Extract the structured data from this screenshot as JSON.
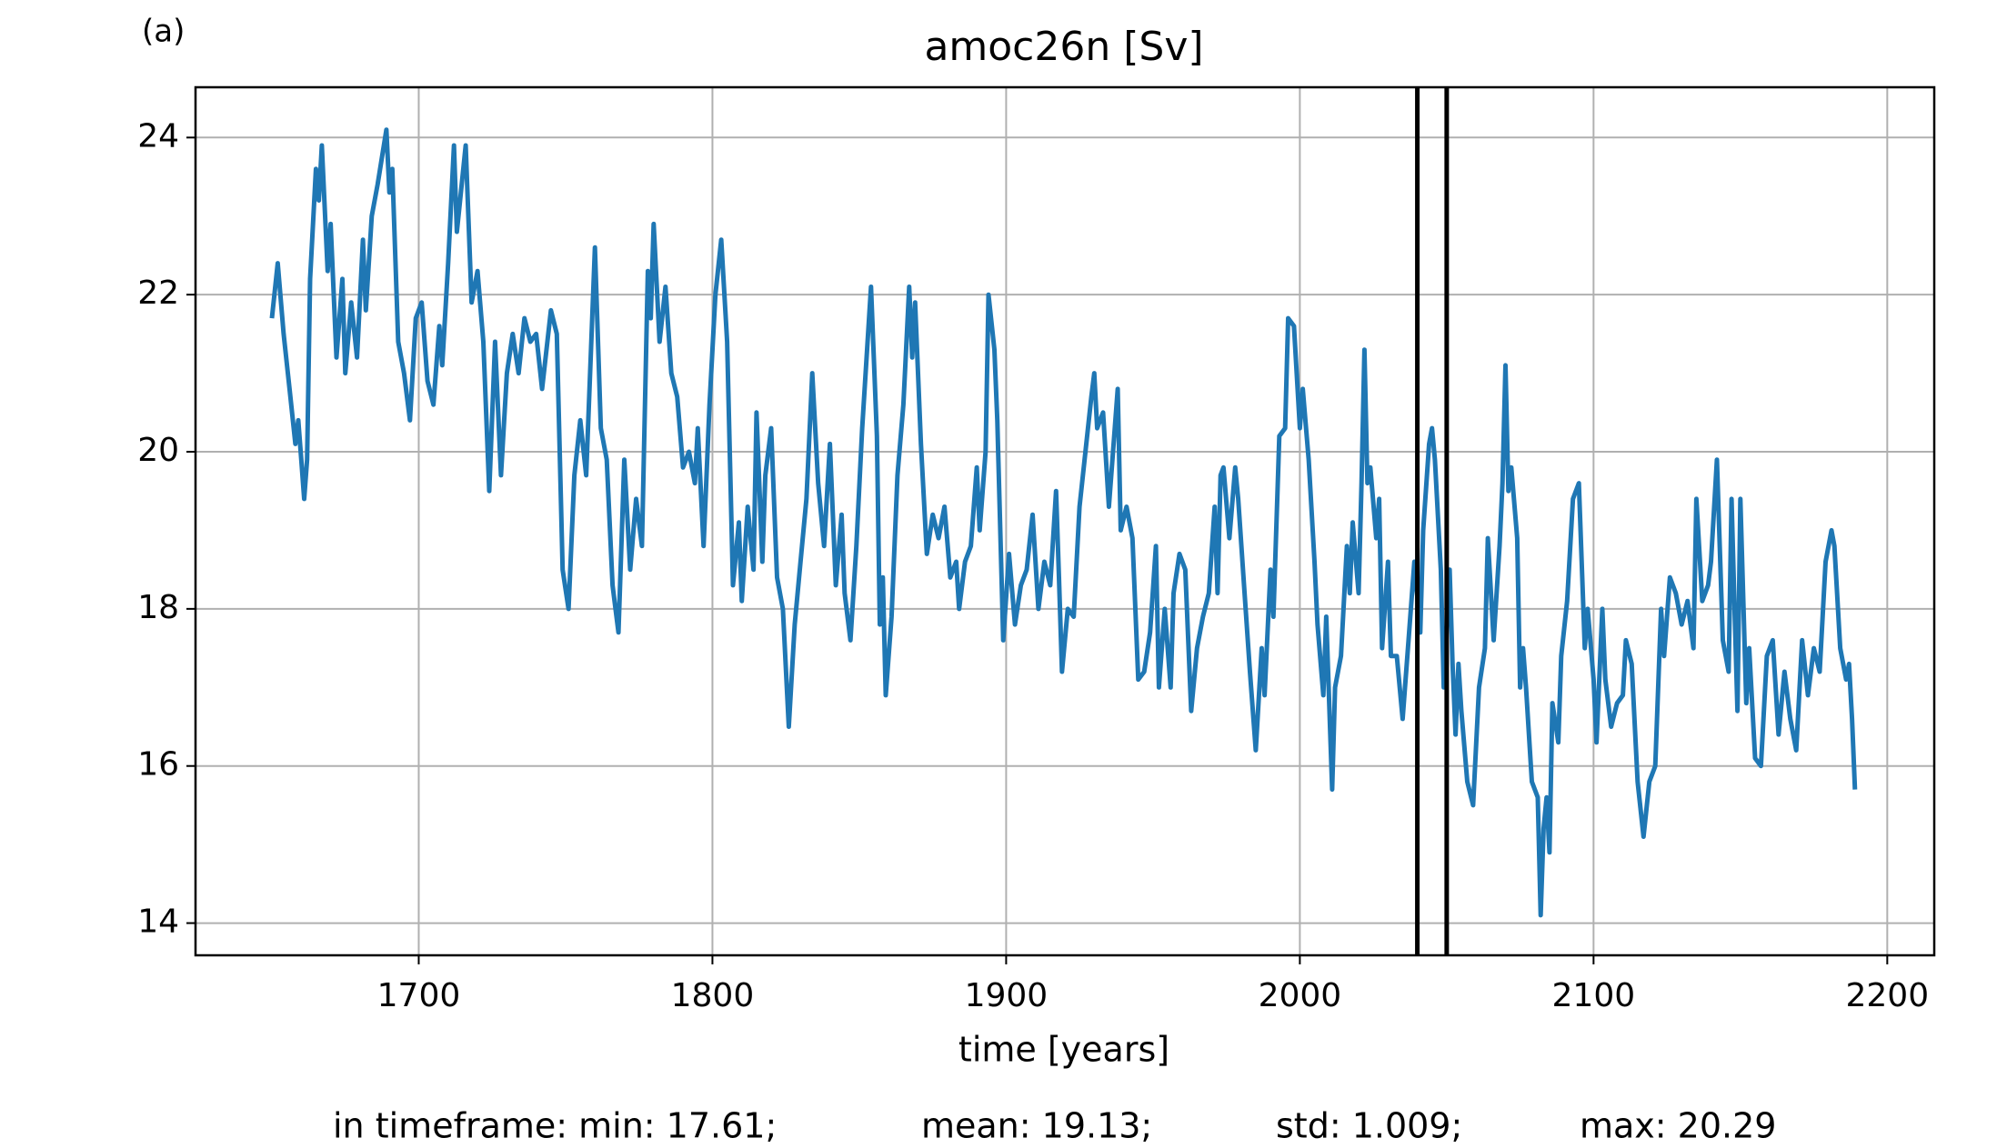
{
  "chart_data": {
    "type": "line",
    "panel_label": "(a)",
    "title": "amoc26n [Sv]",
    "x_label": "time [years]",
    "annotations": [
      "in timeframe: min: 17.61;",
      "mean: 19.13;",
      "std: 1.009;",
      "max: 20.29"
    ],
    "xlim": [
      1624,
      2216
    ],
    "xticks": [
      1700,
      1800,
      1900,
      2000,
      2100,
      2200
    ],
    "ylim": [
      13.59,
      24.64
    ],
    "yticks": [
      14,
      16,
      18,
      20,
      22,
      24
    ],
    "grid": true,
    "vlines": [
      2040,
      2050
    ],
    "vline_color": "#000000",
    "x": [
      1650,
      1652,
      1654,
      1656,
      1658,
      1659,
      1660,
      1661,
      1662,
      1663,
      1665,
      1666,
      1667,
      1669,
      1670,
      1672,
      1674,
      1675,
      1677,
      1679,
      1681,
      1682,
      1684,
      1686,
      1689,
      1690,
      1691,
      1693,
      1695,
      1697,
      1699,
      1701,
      1703,
      1705,
      1707,
      1708,
      1710,
      1712,
      1713,
      1716,
      1718,
      1720,
      1722,
      1724,
      1726,
      1728,
      1730,
      1732,
      1734,
      1736,
      1738,
      1740,
      1742,
      1745,
      1747,
      1749,
      1751,
      1753,
      1755,
      1757,
      1760,
      1762,
      1764,
      1766,
      1768,
      1770,
      1772,
      1774,
      1776,
      1778,
      1779,
      1780,
      1782,
      1784,
      1786,
      1788,
      1790,
      1792,
      1794,
      1795,
      1797,
      1799,
      1801,
      1803,
      1805,
      1807,
      1809,
      1810,
      1812,
      1814,
      1815,
      1817,
      1818,
      1820,
      1822,
      1824,
      1826,
      1828,
      1830,
      1832,
      1834,
      1836,
      1838,
      1840,
      1842,
      1844,
      1845,
      1847,
      1849,
      1851,
      1854,
      1856,
      1857,
      1858,
      1859,
      1861,
      1863,
      1865,
      1867,
      1868,
      1869,
      1871,
      1873,
      1875,
      1877,
      1879,
      1881,
      1883,
      1884,
      1886,
      1888,
      1890,
      1891,
      1893,
      1894,
      1896,
      1897,
      1899,
      1901,
      1903,
      1905,
      1907,
      1909,
      1911,
      1913,
      1915,
      1917,
      1918,
      1919,
      1921,
      1923,
      1925,
      1927,
      1929,
      1930,
      1931,
      1933,
      1935,
      1938,
      1939,
      1941,
      1943,
      1945,
      1947,
      1949,
      1951,
      1952,
      1954,
      1956,
      1957,
      1959,
      1961,
      1963,
      1965,
      1967,
      1969,
      1971,
      1972,
      1973,
      1974,
      1976,
      1978,
      1979,
      1981,
      1983,
      1985,
      1987,
      1988,
      1990,
      1991,
      1993,
      1995,
      1996,
      1998,
      2000,
      2001,
      2003,
      2005,
      2006,
      2008,
      2009,
      2011,
      2012,
      2014,
      2016,
      2017,
      2018,
      2020,
      2021,
      2022,
      2023,
      2024,
      2026,
      2027,
      2028,
      2030,
      2031,
      2033,
      2035,
      2037,
      2039,
      2041,
      2042,
      2044,
      2045,
      2046,
      2048,
      2049,
      2051,
      2052,
      2053,
      2054,
      2055,
      2057,
      2059,
      2061,
      2063,
      2064,
      2066,
      2068,
      2069,
      2070,
      2071,
      2072,
      2074,
      2075,
      2076,
      2077,
      2079,
      2081,
      2082,
      2083,
      2084,
      2085,
      2086,
      2088,
      2089,
      2091,
      2093,
      2095,
      2097,
      2098,
      2100,
      2101,
      2103,
      2104,
      2106,
      2108,
      2110,
      2111,
      2113,
      2115,
      2117,
      2119,
      2121,
      2123,
      2124,
      2126,
      2128,
      2130,
      2132,
      2134,
      2135,
      2137,
      2139,
      2140,
      2142,
      2144,
      2146,
      2147,
      2148,
      2149,
      2150,
      2152,
      2153,
      2155,
      2157,
      2159,
      2161,
      2163,
      2165,
      2167,
      2169,
      2171,
      2173,
      2175,
      2177,
      2179,
      2181,
      2182,
      2184,
      2186,
      2187,
      2188,
      2189
    ],
    "series": [
      {
        "color": "#1f77b4",
        "values": [
          21.7,
          22.4,
          21.5,
          20.8,
          20.1,
          20.4,
          19.9,
          19.4,
          19.9,
          22.2,
          23.6,
          23.2,
          23.9,
          22.3,
          22.9,
          21.2,
          22.2,
          21.0,
          21.9,
          21.2,
          22.7,
          21.8,
          23.0,
          23.4,
          24.1,
          23.3,
          23.6,
          21.4,
          21.0,
          20.4,
          21.7,
          21.9,
          20.9,
          20.6,
          21.6,
          21.1,
          22.4,
          23.9,
          22.8,
          23.9,
          21.9,
          22.3,
          21.4,
          19.5,
          21.4,
          19.7,
          21.0,
          21.5,
          21.0,
          21.7,
          21.4,
          21.5,
          20.8,
          21.8,
          21.5,
          18.5,
          18.0,
          19.7,
          20.4,
          19.7,
          22.6,
          20.3,
          19.9,
          18.3,
          17.7,
          19.9,
          18.5,
          19.4,
          18.8,
          22.3,
          21.7,
          22.9,
          21.4,
          22.1,
          21.0,
          20.7,
          19.8,
          20.0,
          19.6,
          20.3,
          18.8,
          20.6,
          22.0,
          22.7,
          21.4,
          18.3,
          19.1,
          18.1,
          19.3,
          18.5,
          20.5,
          18.6,
          19.7,
          20.3,
          18.4,
          18.0,
          16.5,
          17.8,
          18.6,
          19.4,
          21.0,
          19.6,
          18.8,
          20.1,
          18.3,
          19.2,
          18.2,
          17.6,
          18.8,
          20.3,
          22.1,
          20.2,
          17.8,
          18.4,
          16.9,
          17.9,
          19.7,
          20.6,
          22.1,
          21.2,
          21.9,
          20.1,
          18.7,
          19.2,
          18.9,
          19.3,
          18.4,
          18.6,
          18.0,
          18.6,
          18.8,
          19.8,
          19.0,
          20.0,
          22.0,
          21.3,
          20.4,
          17.6,
          18.7,
          17.8,
          18.3,
          18.5,
          19.2,
          18.0,
          18.6,
          18.3,
          19.5,
          18.4,
          17.2,
          18.0,
          17.9,
          19.3,
          20.0,
          20.7,
          21.0,
          20.3,
          20.5,
          19.3,
          20.8,
          19.0,
          19.3,
          18.9,
          17.1,
          17.2,
          17.7,
          18.8,
          17.0,
          18.0,
          17.0,
          18.2,
          18.7,
          18.5,
          16.7,
          17.5,
          17.9,
          18.2,
          19.3,
          18.2,
          19.7,
          19.8,
          18.9,
          19.8,
          19.4,
          18.3,
          17.2,
          16.2,
          17.5,
          16.9,
          18.5,
          17.9,
          20.2,
          20.3,
          21.7,
          21.6,
          20.3,
          20.8,
          19.9,
          18.6,
          17.8,
          16.9,
          17.9,
          15.7,
          17.0,
          17.4,
          18.8,
          18.2,
          19.1,
          18.2,
          19.6,
          21.3,
          19.6,
          19.8,
          18.9,
          19.4,
          17.5,
          18.6,
          17.4,
          17.4,
          16.6,
          17.6,
          18.6,
          17.7,
          19.0,
          20.1,
          20.3,
          19.9,
          18.5,
          17.0,
          18.5,
          17.3,
          16.4,
          17.3,
          16.7,
          15.8,
          15.5,
          17.0,
          17.5,
          18.9,
          17.6,
          18.8,
          19.6,
          21.1,
          19.5,
          19.8,
          18.9,
          17.0,
          17.5,
          17.0,
          15.8,
          15.6,
          14.1,
          15.2,
          15.6,
          14.9,
          16.8,
          16.3,
          17.4,
          18.1,
          19.4,
          19.6,
          17.5,
          18.0,
          17.1,
          16.3,
          18.0,
          17.1,
          16.5,
          16.8,
          16.9,
          17.6,
          17.3,
          15.8,
          15.1,
          15.8,
          16.0,
          18.0,
          17.4,
          18.4,
          18.2,
          17.8,
          18.1,
          17.5,
          19.4,
          18.1,
          18.3,
          18.6,
          19.9,
          17.6,
          17.2,
          19.4,
          18.0,
          16.7,
          19.4,
          16.8,
          17.5,
          16.1,
          16.0,
          17.4,
          17.6,
          16.4,
          17.2,
          16.6,
          16.2,
          17.6,
          16.9,
          17.5,
          17.2,
          18.6,
          19.0,
          18.8,
          17.5,
          17.1,
          17.3,
          16.6,
          15.7
        ]
      }
    ]
  }
}
